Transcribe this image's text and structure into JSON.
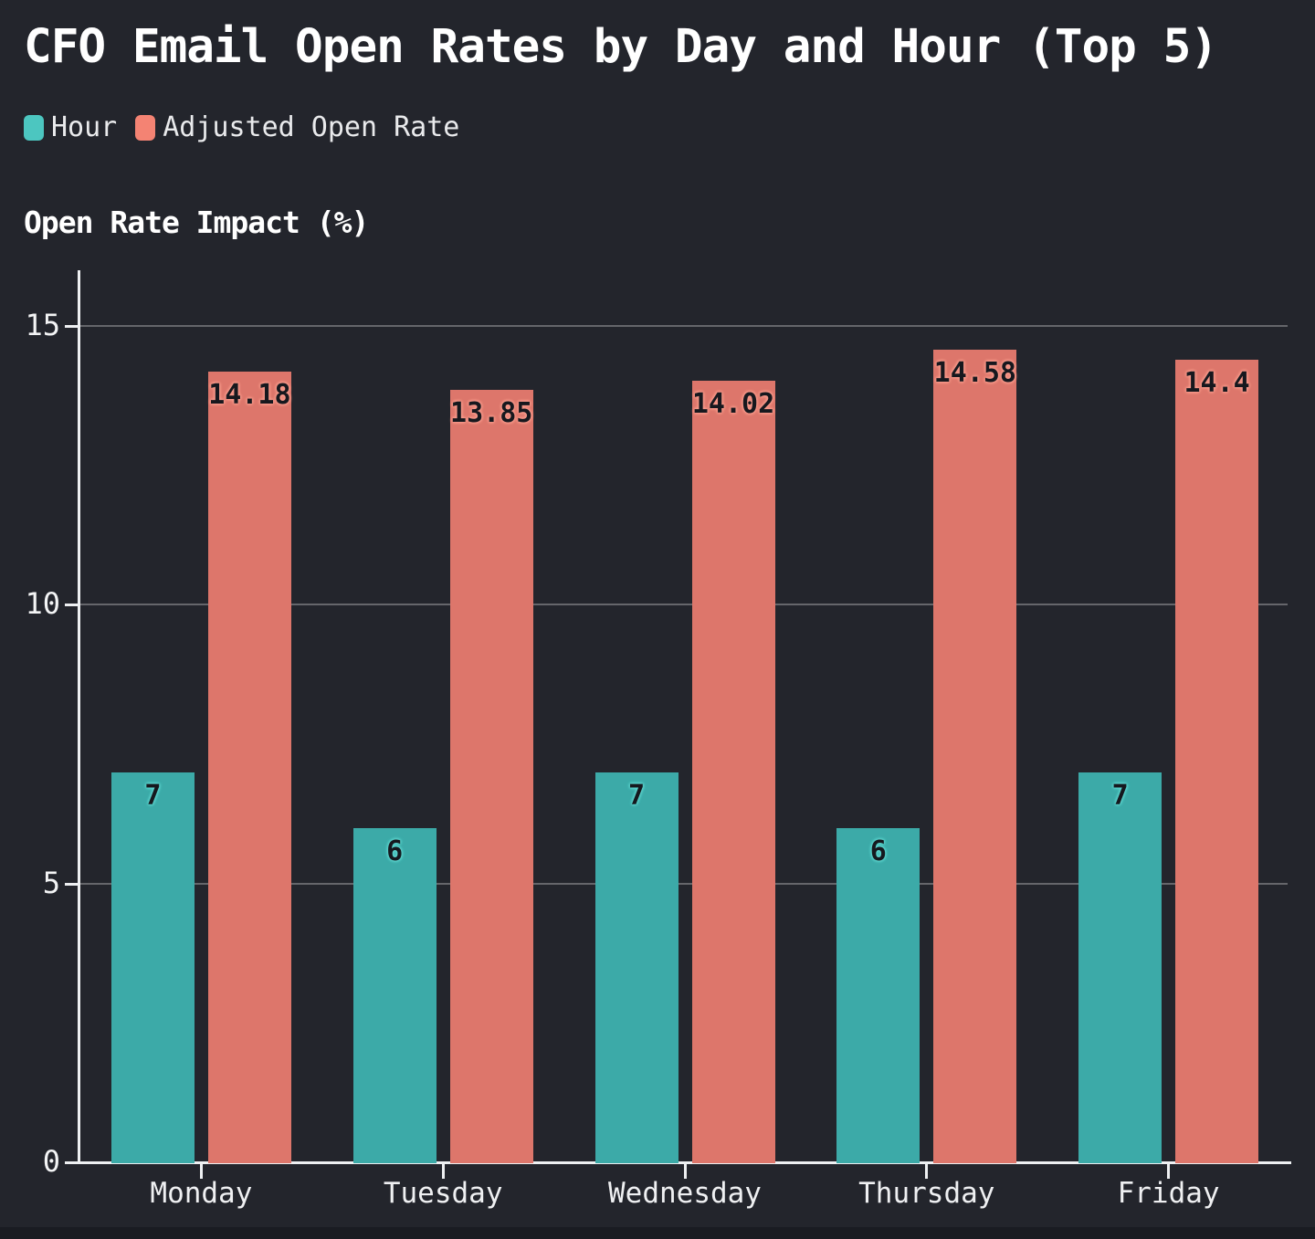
{
  "title": "CFO Email Open Rates by Day and Hour (Top 5)",
  "colors": {
    "background": "#23252c",
    "bottom_edge": "#1a1c22",
    "axis": "#eef0f2",
    "grid": "rgba(255,255,255,0.30)",
    "teal": "#3caaa8",
    "teal_bright": "#4cc6c0",
    "salmon": "#dd766b",
    "salmon_bright": "#f48373",
    "bar_label": "#16181e"
  },
  "legend": {
    "items": [
      {
        "label": "Hour"
      },
      {
        "label": "Adjusted Open Rate"
      }
    ]
  },
  "chart_data": {
    "type": "bar",
    "categories": [
      "Monday",
      "Tuesday",
      "Wednesday",
      "Thursday",
      "Friday"
    ],
    "series": [
      {
        "name": "Hour",
        "color": "#3caaa8",
        "glow": "#5bd2cc",
        "values": [
          7,
          6,
          7,
          6,
          7
        ]
      },
      {
        "name": "Adjusted Open Rate",
        "color": "#dd766b",
        "glow": "#f79a8b",
        "values": [
          14.18,
          13.85,
          14.02,
          14.58,
          14.4
        ]
      }
    ],
    "title": "CFO Email Open Rates by Day and Hour (Top 5)",
    "xlabel": "",
    "ylabel": "Open Rate Impact (%)",
    "ylim": [
      0,
      16
    ],
    "yticks": [
      0,
      5,
      10,
      15
    ],
    "grid": true,
    "legend_position": "top-left",
    "value_labels_visible": true
  }
}
